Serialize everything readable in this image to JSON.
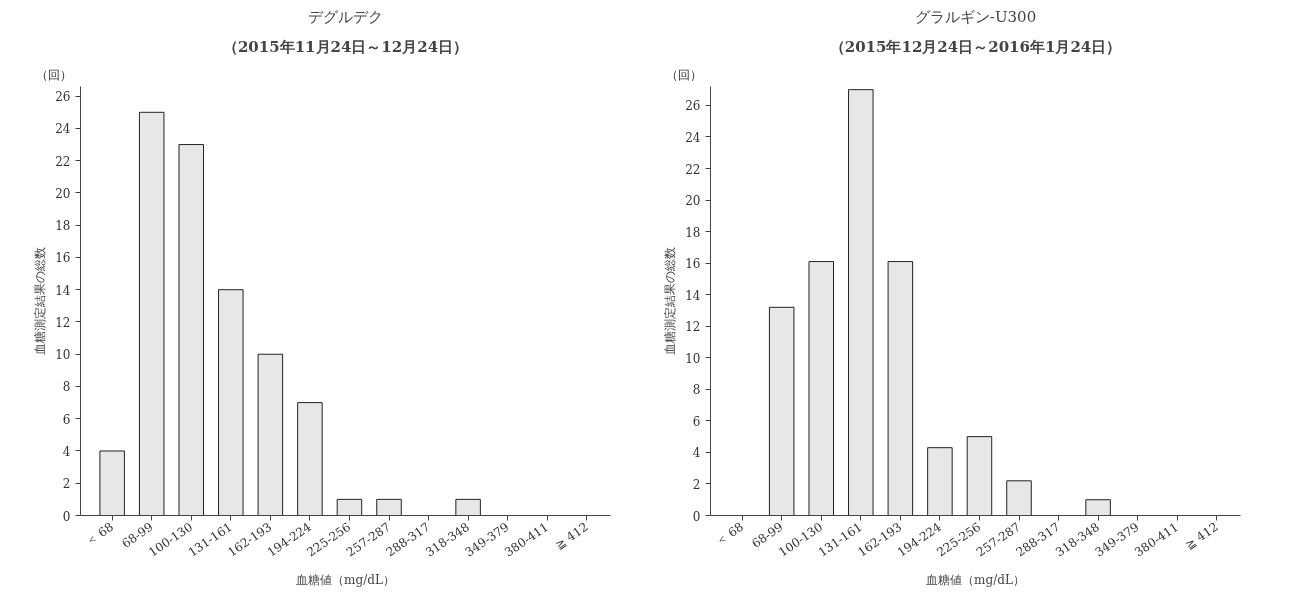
{
  "chart_data": [
    {
      "type": "bar",
      "title": "デグルデク",
      "subtitle": "（2015年11月24日～12月24日）",
      "xlabel": "血糖値（mg/dL）",
      "ylabel": "血糖測定結果の総数",
      "annotations": [
        "（回）"
      ],
      "categories": [
        "＜ 68",
        "68-99",
        "100-130",
        "131-161",
        "162-193",
        "194-224",
        "225-256",
        "257-287",
        "288-317",
        "318-348",
        "349-379",
        "380-411",
        "≧ 412"
      ],
      "values": [
        4,
        25,
        23,
        14,
        10,
        7,
        1,
        1,
        0,
        1,
        0,
        0,
        0
      ],
      "color": "#e6e7e8",
      "ylim": [
        0,
        26.6
      ],
      "yticks": [
        0,
        2,
        4,
        6,
        8,
        10,
        12,
        14,
        16,
        18,
        20,
        22,
        24,
        26
      ],
      "grid": false
    },
    {
      "type": "bar",
      "title": "グラルギン-U300",
      "subtitle": "（2015年12月24日～2016年1月24日）",
      "xlabel": "血糖値（mg/dL）",
      "ylabel": "血糖測定結果の総数",
      "annotations": [
        "（回）"
      ],
      "categories": [
        "＜ 68",
        "68-99",
        "100-130",
        "131-161",
        "162-193",
        "194-224",
        "225-256",
        "257-287",
        "288-317",
        "318-348",
        "349-379",
        "380-411",
        "≧ 412"
      ],
      "values": [
        0,
        13.2,
        16.1,
        27,
        16.1,
        4.3,
        5,
        2.2,
        0,
        1,
        0,
        0,
        0
      ],
      "color": "#e6e7e8",
      "ylim": [
        0,
        27.2
      ],
      "yticks": [
        0,
        2,
        4,
        6,
        8,
        10,
        12,
        14,
        16,
        18,
        20,
        22,
        24,
        26
      ],
      "grid": false
    }
  ]
}
